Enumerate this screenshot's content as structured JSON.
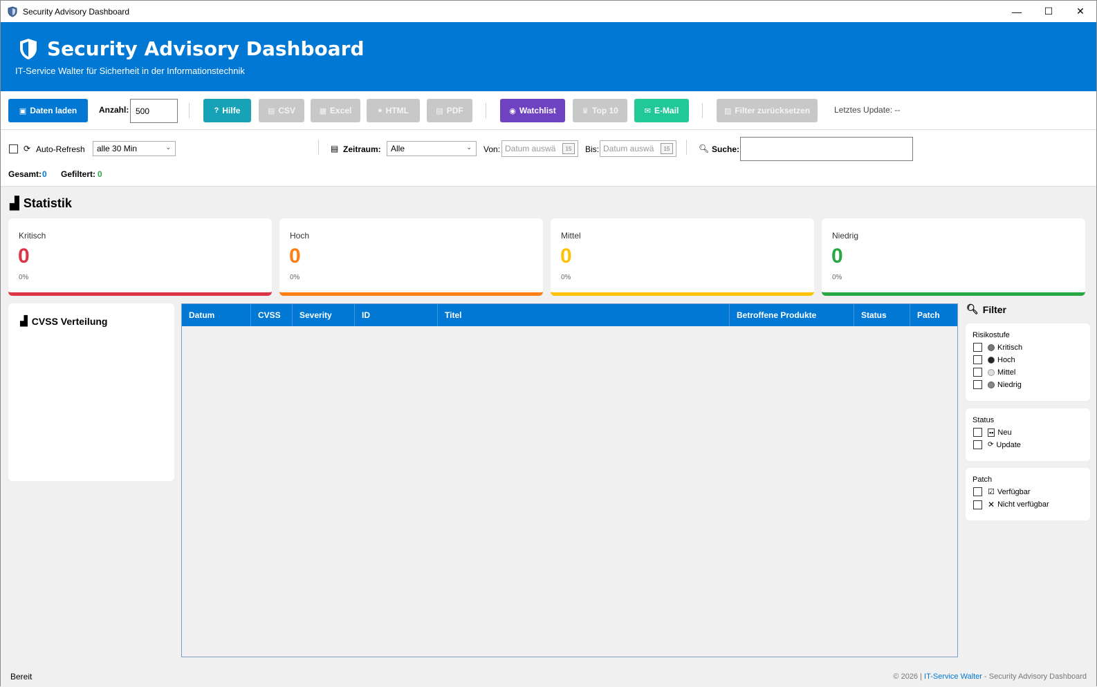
{
  "window": {
    "title": "Security Advisory Dashboard",
    "minimize": "—",
    "maximize": "☐",
    "close": "✕"
  },
  "header": {
    "title": "Security Advisory Dashboard",
    "subtitle": "IT-Service Walter für Sicherheit in der Informationstechnik",
    "color": "#0078d4"
  },
  "toolbar": {
    "load_button": "Daten laden",
    "count_label": "Anzahl:",
    "count_value": "500",
    "help_button": "Hilfe",
    "csv_button": "CSV",
    "excel_button": "Excel",
    "html_button": "HTML",
    "pdf_button": "PDF",
    "watchlist_button": "Watchlist",
    "top10_button": "Top 10",
    "email_button": "E-Mail",
    "reset_button": "Filter zurücksetzen",
    "last_update": "Letztes Update: --"
  },
  "filterbar": {
    "autorefresh_label": "Auto-Refresh",
    "autorefresh_interval": "alle 30 Min",
    "period_label": "Zeitraum:",
    "period_value": "Alle",
    "from_label": "Von:",
    "from_placeholder": "Datum auswä",
    "to_label": "Bis:",
    "to_placeholder": "Datum auswä",
    "calendar_day": "15",
    "search_label": "Suche:",
    "search_value": "",
    "total_label": "Gesamt:",
    "total_value": "0",
    "filtered_label": "Gefiltert:",
    "filtered_value": "0"
  },
  "stats": {
    "title": "Statistik",
    "cards": [
      {
        "label": "Kritisch",
        "value": "0",
        "percent": "0%",
        "color": "#dc3545"
      },
      {
        "label": "Hoch",
        "value": "0",
        "percent": "0%",
        "color": "#fd7e14"
      },
      {
        "label": "Mittel",
        "value": "0",
        "percent": "0%",
        "color": "#ffc107"
      },
      {
        "label": "Niedrig",
        "value": "0",
        "percent": "0%",
        "color": "#28a745"
      }
    ]
  },
  "cvss": {
    "title": "CVSS Verteilung"
  },
  "table": {
    "columns": [
      "Datum",
      "CVSS",
      "Severity",
      "ID",
      "Titel",
      "Betroffene Produkte",
      "Status",
      "Patch"
    ],
    "rows": []
  },
  "filter_panel": {
    "title": "Filter",
    "risk_title": "Risikostufe",
    "risk_options": [
      "Kritisch",
      "Hoch",
      "Mittel",
      "Niedrig"
    ],
    "status_title": "Status",
    "status_options": [
      "Neu",
      "Update"
    ],
    "patch_title": "Patch",
    "patch_options": [
      "Verfügbar",
      "Nicht verfügbar"
    ]
  },
  "statusbar": {
    "status": "Bereit",
    "copyright": "© 2026  |  ",
    "company": "IT-Service Walter",
    "suffix": " - Security Advisory Dashboard"
  }
}
